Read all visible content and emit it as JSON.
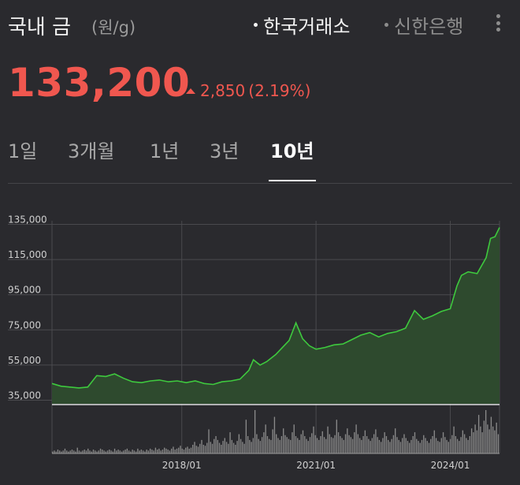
{
  "header": {
    "title": "국내 금",
    "unit": "(원/g)",
    "sources": [
      {
        "label": "한국거래소",
        "active": true
      },
      {
        "label": "신한은행",
        "active": false
      }
    ],
    "menu_icon": "kebab-menu-icon"
  },
  "quote": {
    "price": "133,200",
    "change": "2,850",
    "change_pct": "(2.19%)",
    "direction": "up",
    "color": "#f0574f"
  },
  "tabs": [
    {
      "label": "1일",
      "active": false
    },
    {
      "label": "3개월",
      "active": false
    },
    {
      "label": "1년",
      "active": false
    },
    {
      "label": "3년",
      "active": false
    },
    {
      "label": "10년",
      "active": true
    }
  ],
  "chart_data": {
    "type": "area",
    "line_color": "#3ec93e",
    "fill_color": "#2e4a2e",
    "y_ticks": [
      135000,
      115000,
      95000,
      75000,
      55000,
      35000
    ],
    "y_tick_labels": [
      "135,000",
      "115,000",
      "95,000",
      "75,000",
      "55,000",
      "35,000"
    ],
    "ylim": [
      33000,
      137000
    ],
    "x_tick_labels": [
      "2018/01",
      "2021/01",
      "2024/01"
    ],
    "x_ticks": [
      2018.0,
      2021.0,
      2024.0
    ],
    "xlim": [
      2015.1,
      2025.1
    ],
    "grid": true,
    "series": [
      {
        "x": [
          2015.1,
          2015.3,
          2015.5,
          2015.7,
          2015.9,
          2016.1,
          2016.3,
          2016.5,
          2016.7,
          2016.9,
          2017.1,
          2017.3,
          2017.5,
          2017.7,
          2017.9,
          2018.1,
          2018.3,
          2018.5,
          2018.7,
          2018.9,
          2019.1,
          2019.3,
          2019.5,
          2019.6,
          2019.75,
          2019.9,
          2020.1,
          2020.25,
          2020.4,
          2020.55,
          2020.7,
          2020.85,
          2021.0,
          2021.2,
          2021.4,
          2021.6,
          2021.8,
          2022.0,
          2022.2,
          2022.4,
          2022.6,
          2022.8,
          2023.0,
          2023.2,
          2023.4,
          2023.6,
          2023.8,
          2024.0,
          2024.15,
          2024.25,
          2024.4,
          2024.6,
          2024.8,
          2024.9,
          2025.0,
          2025.1
        ],
        "y": [
          44500,
          43000,
          42500,
          42000,
          42500,
          49000,
          48500,
          50000,
          47500,
          45500,
          45000,
          46000,
          46500,
          45500,
          46000,
          45000,
          46000,
          44500,
          44000,
          45500,
          46000,
          47000,
          52000,
          58000,
          55000,
          57000,
          61000,
          65000,
          69000,
          79000,
          70000,
          66000,
          64000,
          65000,
          66500,
          67000,
          69500,
          72000,
          73500,
          71000,
          73000,
          74000,
          76000,
          86000,
          81000,
          83000,
          85500,
          87000,
          100000,
          106000,
          108000,
          107000,
          116000,
          127000,
          128000,
          133200
        ]
      }
    ],
    "volume": [
      2,
      3,
      2,
      4,
      3,
      2,
      3,
      5,
      3,
      2,
      3,
      4,
      3,
      2,
      6,
      3,
      2,
      3,
      4,
      3,
      5,
      3,
      2,
      4,
      3,
      2,
      3,
      5,
      4,
      3,
      2,
      3,
      4,
      3,
      2,
      5,
      3,
      4,
      3,
      2,
      3,
      4,
      5,
      3,
      2,
      4,
      3,
      2,
      5,
      3,
      4,
      3,
      2,
      4,
      3,
      5,
      4,
      3,
      6,
      4,
      5,
      3,
      4,
      6,
      5,
      4,
      3,
      5,
      7,
      4,
      5,
      6,
      8,
      5,
      4,
      6,
      7,
      5,
      6,
      9,
      12,
      8,
      7,
      10,
      14,
      9,
      8,
      11,
      25,
      12,
      10,
      15,
      18,
      14,
      11,
      9,
      13,
      16,
      12,
      10,
      22,
      14,
      11,
      9,
      13,
      20,
      15,
      12,
      10,
      35,
      18,
      14,
      12,
      16,
      45,
      20,
      15,
      13,
      17,
      22,
      30,
      18,
      15,
      14,
      25,
      38,
      20,
      16,
      14,
      18,
      26,
      19,
      17,
      15,
      14,
      22,
      30,
      18,
      16,
      14,
      20,
      24,
      18,
      15,
      13,
      17,
      21,
      28,
      19,
      16,
      14,
      18,
      23,
      17,
      15,
      28,
      20,
      17,
      16,
      19,
      35,
      22,
      18,
      16,
      14,
      20,
      26,
      19,
      17,
      15,
      22,
      30,
      20,
      16,
      14,
      18,
      24,
      18,
      15,
      13,
      16,
      20,
      25,
      17,
      14,
      12,
      16,
      22,
      18,
      14,
      12,
      15,
      19,
      26,
      17,
      14,
      12,
      16,
      20,
      16,
      13,
      11,
      14,
      18,
      22,
      15,
      13,
      11,
      14,
      19,
      16,
      13,
      11,
      15,
      18,
      24,
      16,
      13,
      12,
      16,
      22,
      17,
      14,
      12,
      15,
      19,
      28,
      18,
      15,
      13,
      17,
      24,
      20,
      16,
      14,
      18,
      26,
      22,
      30,
      24,
      40,
      28,
      22,
      34,
      45,
      30,
      25,
      38,
      28,
      24,
      32,
      20
    ]
  }
}
